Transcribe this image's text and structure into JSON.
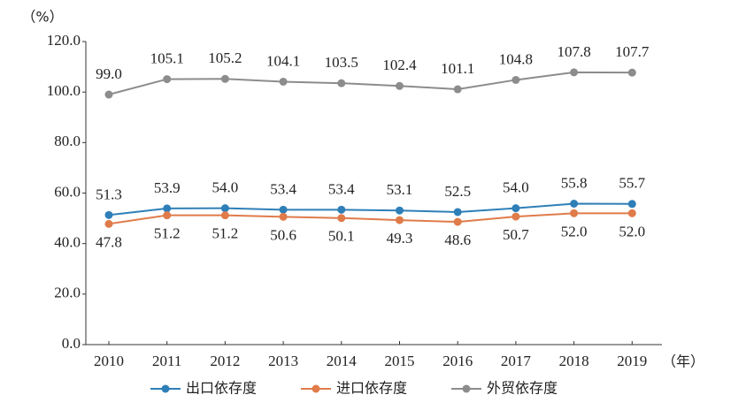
{
  "chart_data": {
    "type": "line",
    "ylabel": "（%）",
    "xlabel": "（年）",
    "categories": [
      "2010",
      "2011",
      "2012",
      "2013",
      "2014",
      "2015",
      "2016",
      "2017",
      "2018",
      "2019"
    ],
    "ylim": [
      0,
      120
    ],
    "yticks": [
      {
        "value": 0,
        "label": "0.0"
      },
      {
        "value": 20,
        "label": "20.0"
      },
      {
        "value": 40,
        "label": "40.0"
      },
      {
        "value": 60,
        "label": "60.0"
      },
      {
        "value": 80,
        "label": "80.0"
      },
      {
        "value": 100,
        "label": "100.0"
      },
      {
        "value": 120,
        "label": "120.0"
      }
    ],
    "series": [
      {
        "name": "出口依存度",
        "color": "#2e7fb8",
        "label_position": "above",
        "values": [
          51.3,
          53.9,
          54,
          53.4,
          53.4,
          53.1,
          52.5,
          54,
          55.8,
          55.7
        ],
        "value_labels": [
          "51.3",
          "53.9",
          "54.0",
          "53.4",
          "53.4",
          "53.1",
          "52.5",
          "54.0",
          "55.8",
          "55.7"
        ]
      },
      {
        "name": "进口依存度",
        "color": "#e07b4a",
        "label_position": "below",
        "values": [
          47.8,
          51.2,
          51.2,
          50.6,
          50.1,
          49.3,
          48.6,
          50.7,
          52,
          52
        ],
        "value_labels": [
          "47.8",
          "51.2",
          "51.2",
          "50.6",
          "50.1",
          "49.3",
          "48.6",
          "50.7",
          "52.0",
          "52.0"
        ]
      },
      {
        "name": "外贸依存度",
        "color": "#8c8c8c",
        "label_position": "above",
        "values": [
          99,
          105.1,
          105.2,
          104.1,
          103.5,
          102.4,
          101.1,
          104.8,
          107.8,
          107.7
        ],
        "value_labels": [
          "99.0",
          "105.1",
          "105.2",
          "104.1",
          "103.5",
          "102.4",
          "101.1",
          "104.8",
          "107.8",
          "107.7"
        ]
      }
    ]
  }
}
